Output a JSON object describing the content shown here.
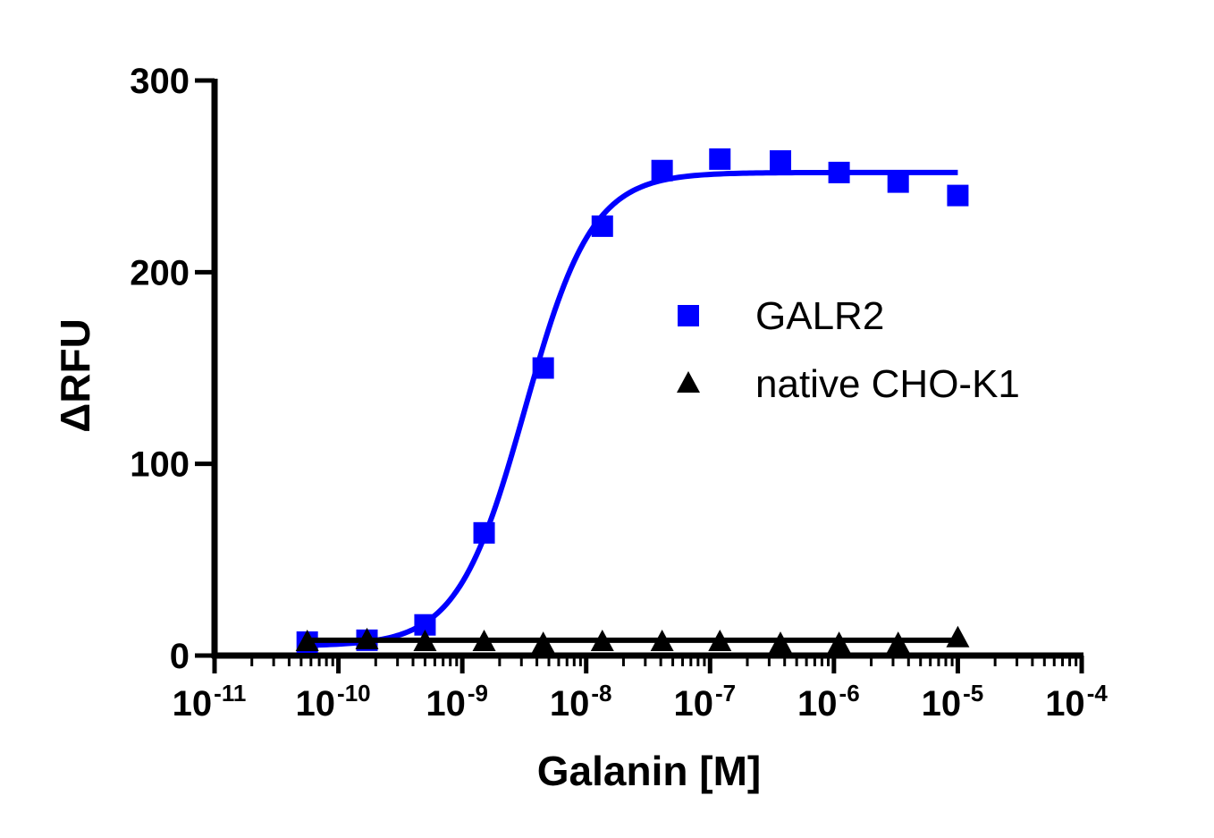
{
  "chart_data": {
    "type": "scatter",
    "xscale": "log",
    "ylabel": "ΔRFU",
    "xlabel": "Galanin [M]",
    "xlim": [
      1e-11,
      0.0001
    ],
    "ylim": [
      0,
      300
    ],
    "yticks": [
      0,
      100,
      200,
      300
    ],
    "xticks": [
      {
        "value": 1e-11,
        "base": "10",
        "exp": "-11"
      },
      {
        "value": 1e-10,
        "base": "10",
        "exp": "-10"
      },
      {
        "value": 1e-09,
        "base": "10",
        "exp": "-9"
      },
      {
        "value": 1e-08,
        "base": "10",
        "exp": "-8"
      },
      {
        "value": 1e-07,
        "base": "10",
        "exp": "-7"
      },
      {
        "value": 1e-06,
        "base": "10",
        "exp": "-6"
      },
      {
        "value": 1e-05,
        "base": "10",
        "exp": "-5"
      },
      {
        "value": 0.0001,
        "base": "10",
        "exp": "-4"
      }
    ],
    "legend": "right",
    "grid": false,
    "series": [
      {
        "name": "GALR2",
        "color": "#0000ff",
        "marker": "square",
        "x": [
          5.6e-11,
          1.7e-10,
          5e-10,
          1.5e-09,
          4.5e-09,
          1.35e-08,
          4.1e-08,
          1.2e-07,
          3.7e-07,
          1.1e-06,
          3.3e-06,
          1e-05
        ],
        "y": [
          7,
          8,
          16,
          64,
          150,
          224,
          253,
          259,
          258,
          252,
          247,
          240
        ],
        "fit": {
          "bottom": 5,
          "top": 252,
          "ec50": 3.2e-09,
          "hill": 1.6,
          "x_range": [
            5.6e-11,
            1e-05
          ]
        }
      },
      {
        "name": "native CHO-K1",
        "color": "#000000",
        "marker": "triangle",
        "x": [
          5.6e-11,
          1.7e-10,
          5e-10,
          1.5e-09,
          4.5e-09,
          1.35e-08,
          4.1e-08,
          1.2e-07,
          3.7e-07,
          1.1e-06,
          3.3e-06,
          1e-05
        ],
        "y": [
          7,
          8,
          7,
          7,
          6,
          7,
          7,
          7,
          6,
          6,
          6,
          9
        ],
        "fit": {
          "constant": 8,
          "x_range": [
            5.6e-11,
            1e-05
          ]
        }
      }
    ]
  }
}
